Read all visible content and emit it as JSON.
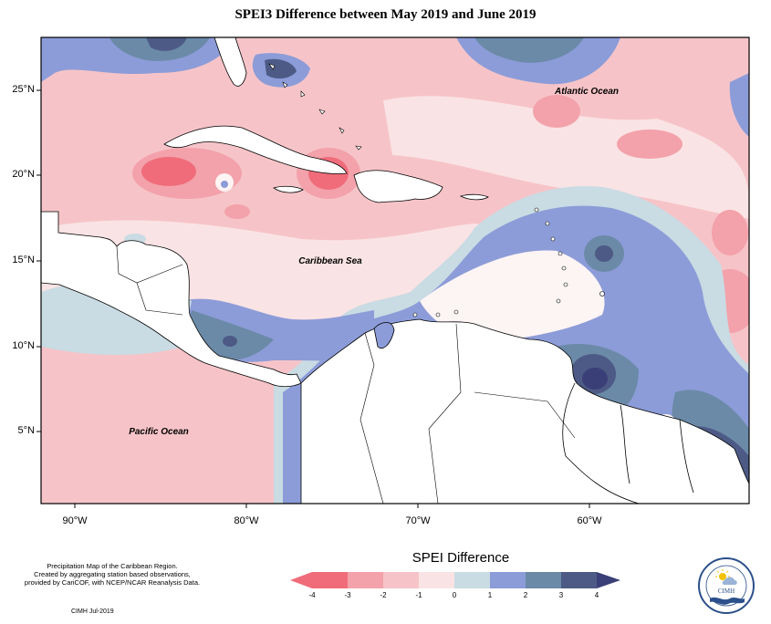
{
  "title": "SPEI3 Difference between May 2019 and June 2019",
  "map": {
    "latitude_labels": [
      "25°N",
      "20°N",
      "15°N",
      "10°N",
      "5°N"
    ],
    "longitude_labels": [
      "90°W",
      "80°W",
      "70°W",
      "60°W"
    ],
    "place_labels": {
      "atlantic": "Atlantic Ocean",
      "caribbean": "Caribbean Sea",
      "pacific": "Pacific Ocean"
    }
  },
  "legend": {
    "title": "SPEI Difference",
    "ticks": [
      "-4",
      "-3",
      "-2",
      "-1",
      "0",
      "1",
      "2",
      "3",
      "4"
    ],
    "colors": [
      "#f06c7a",
      "#f3a1aa",
      "#f6c4c8",
      "#fae3e4",
      "#fdf4f4",
      "#c9dbe3",
      "#8c9cd8",
      "#6b8aa8",
      "#4d5a85",
      "#3a3f78"
    ]
  },
  "credit": {
    "lines": [
      "Precipitation Map of the Caribbean Region.",
      "Created by aggregating station based observations,",
      "provided by CariCOF, with NCEP/NCAR Reanalysis Data."
    ],
    "date": "CIMH Jul-2019"
  },
  "logo": {
    "text": "CIMH"
  }
}
